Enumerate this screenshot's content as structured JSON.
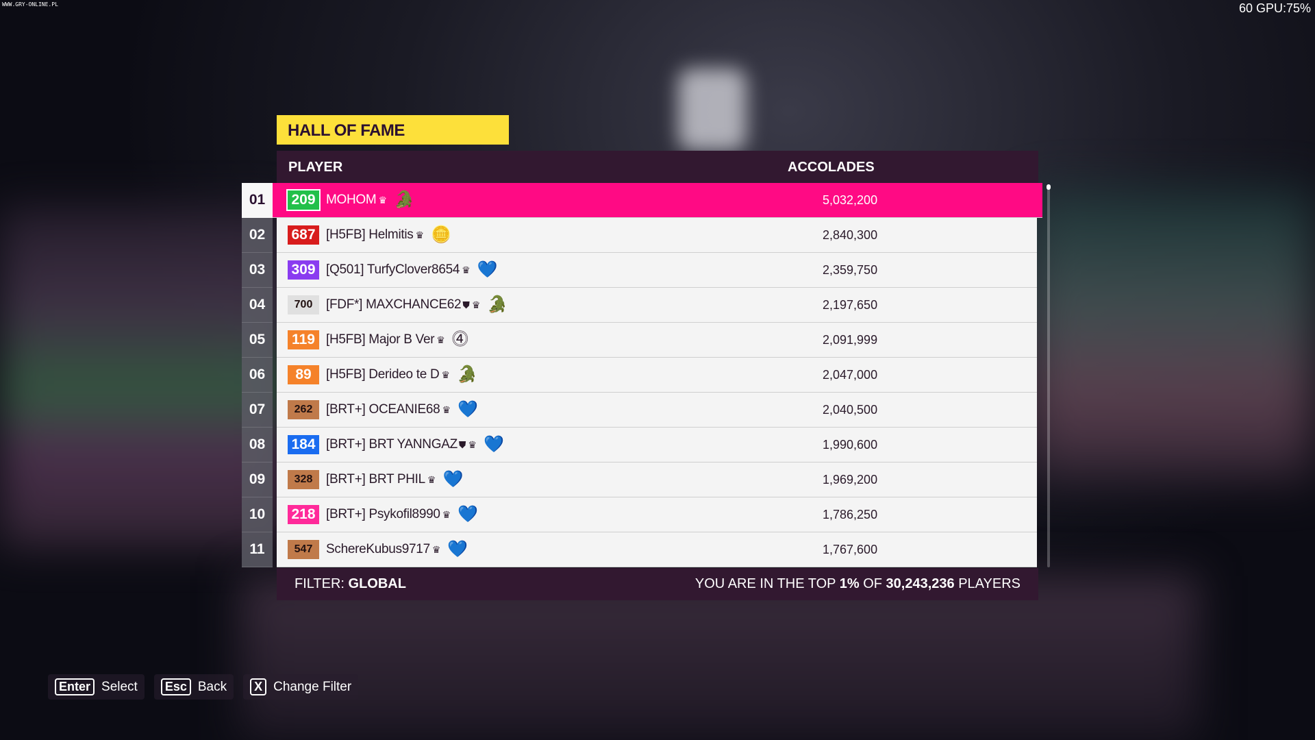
{
  "watermark": "WWW.GRY-ONLINE.PL",
  "overlay": "60 GPU:75%",
  "title": "HALL OF FAME",
  "columns": {
    "player": "PLAYER",
    "accolades": "ACCOLADES"
  },
  "rows": [
    {
      "rank": "01",
      "level": "209",
      "level_color": "#22c04a",
      "name": "MOHOM",
      "badge": "crocodile-icon",
      "accolades": "5,032,200",
      "selected": true
    },
    {
      "rank": "02",
      "level": "687",
      "level_color": "#d81c1c",
      "name": "[H5FB] Helmitis",
      "badge": "h-coin-icon",
      "accolades": "2,840,300"
    },
    {
      "rank": "03",
      "level": "309",
      "level_color": "#8a3cf0",
      "name": "[Q501] TurfyClover8654",
      "badge": "heart-icon",
      "accolades": "2,359,750"
    },
    {
      "rank": "04",
      "level": "700",
      "level_color": "#e0e0e0",
      "name": "[FDF*] MAXCHANCE62",
      "shield": true,
      "badge": "crocodile-icon",
      "accolades": "2,197,650"
    },
    {
      "rank": "05",
      "level": "119",
      "level_color": "#f5822a",
      "name": "[H5FB] Major B Ver",
      "badge": "43-icon",
      "accolades": "2,091,999"
    },
    {
      "rank": "06",
      "level": "89",
      "level_color": "#f5822a",
      "name": "[H5FB] Derideo te D",
      "badge": "crocodile-icon",
      "accolades": "2,047,000"
    },
    {
      "rank": "07",
      "level": "262",
      "level_color": "#c07a4a",
      "name": "[BRT+] OCEANIE68",
      "badge": "heart-icon",
      "accolades": "2,040,500"
    },
    {
      "rank": "08",
      "level": "184",
      "level_color": "#1a6cf0",
      "name": "[BRT+] BRT YANNGAZ",
      "shield": true,
      "badge": "heart-icon",
      "accolades": "1,990,600"
    },
    {
      "rank": "09",
      "level": "328",
      "level_color": "#c07a4a",
      "name": "[BRT+] BRT PHIL",
      "badge": "heart-icon",
      "accolades": "1,969,200"
    },
    {
      "rank": "10",
      "level": "218",
      "level_color": "#ff2a9a",
      "name": "[BRT+] Psykofil8990",
      "badge": "heart-icon",
      "accolades": "1,786,250"
    },
    {
      "rank": "11",
      "level": "547",
      "level_color": "#c07a4a",
      "name": "SchereKubus9717",
      "badge": "heart-icon",
      "accolades": "1,767,600"
    }
  ],
  "footer": {
    "filter_label": "FILTER:",
    "filter_value": "GLOBAL",
    "top_pre": "YOU ARE IN THE TOP",
    "top_pct": "1%",
    "top_of": "OF",
    "total": "30,243,236",
    "top_post": "PLAYERS"
  },
  "hints": [
    {
      "key": "Enter",
      "label": "Select"
    },
    {
      "key": "Esc",
      "label": "Back"
    },
    {
      "key": "X",
      "label": "Change Filter"
    }
  ]
}
